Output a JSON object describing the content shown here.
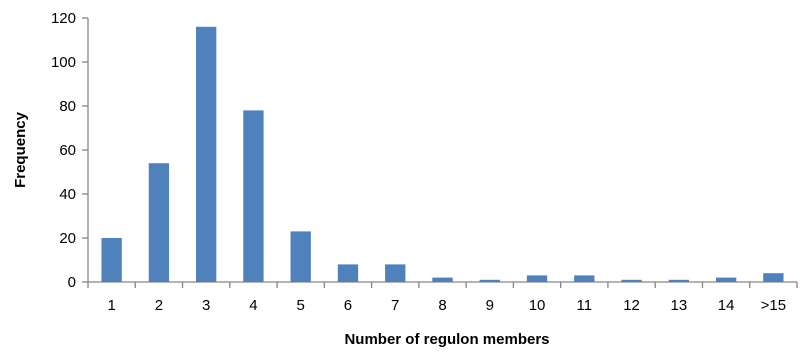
{
  "chart_data": {
    "type": "bar",
    "title": "",
    "xlabel": "Number of regulon members",
    "ylabel": "Frequency",
    "categories": [
      "1",
      "2",
      "3",
      "4",
      "5",
      "6",
      "7",
      "8",
      "9",
      "10",
      "11",
      "12",
      "13",
      "14",
      ">15"
    ],
    "values": [
      20,
      54,
      116,
      78,
      23,
      8,
      8,
      2,
      1,
      3,
      3,
      1,
      1,
      2,
      4
    ],
    "ylim": [
      0,
      120
    ],
    "yticks": [
      "0",
      "20",
      "40",
      "60",
      "80",
      "100",
      "120"
    ],
    "grid": false,
    "legend": "none",
    "bar_color": "#4f81bd",
    "axis_color": "#868686"
  }
}
